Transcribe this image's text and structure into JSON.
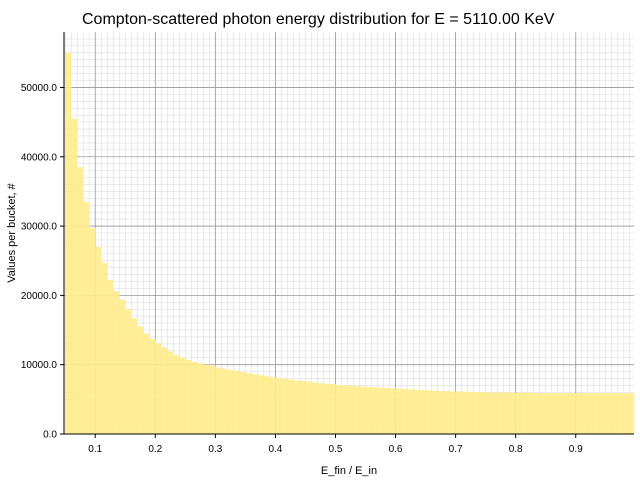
{
  "chart_data": {
    "type": "bar",
    "title": "Compton-scattered photon energy distribution for E = 5110.00 KeV",
    "xlabel": "E_fin / E_in",
    "ylabel": "Values per bucket, #",
    "xlim": [
      0.048,
      0.997
    ],
    "ylim": [
      0,
      58000
    ],
    "xticks": [
      0.1,
      0.2,
      0.3,
      0.4,
      0.5,
      0.6,
      0.7,
      0.8,
      0.9
    ],
    "xtick_labels": [
      "0.1",
      "0.2",
      "0.3",
      "0.4",
      "0.5",
      "0.6",
      "0.7",
      "0.8",
      "0.9"
    ],
    "yticks": [
      0,
      10000,
      20000,
      30000,
      40000,
      50000
    ],
    "ytick_labels": [
      "0.0",
      "10000.0",
      "20000.0",
      "30000.0",
      "40000.0",
      "50000.0"
    ],
    "grid": true,
    "bar_color": "#ffec8b",
    "bins": {
      "start": 0.05,
      "width": 0.01,
      "count": 95
    },
    "values": [
      55000,
      45500,
      38500,
      33500,
      29700,
      27000,
      24700,
      22200,
      20600,
      19400,
      18000,
      16700,
      15500,
      14500,
      13700,
      13100,
      12500,
      11900,
      11400,
      11000,
      10700,
      10400,
      10200,
      10000,
      9800,
      9600,
      9400,
      9250,
      9100,
      8950,
      8800,
      8650,
      8500,
      8350,
      8200,
      8050,
      7950,
      7850,
      7750,
      7650,
      7550,
      7450,
      7350,
      7250,
      7200,
      7100,
      7000,
      6950,
      6900,
      6850,
      6800,
      6750,
      6700,
      6650,
      6600,
      6550,
      6500,
      6450,
      6400,
      6350,
      6300,
      6250,
      6200,
      6200,
      6150,
      6150,
      6100,
      6100,
      6050,
      6050,
      6000,
      6000,
      6000,
      6000,
      5950,
      5950,
      5950,
      5950,
      5900,
      5900,
      5900,
      5900,
      5900,
      5900,
      5900,
      5900,
      5900,
      5900,
      5900,
      5900,
      5900,
      5900,
      5900,
      5900,
      5900
    ]
  }
}
